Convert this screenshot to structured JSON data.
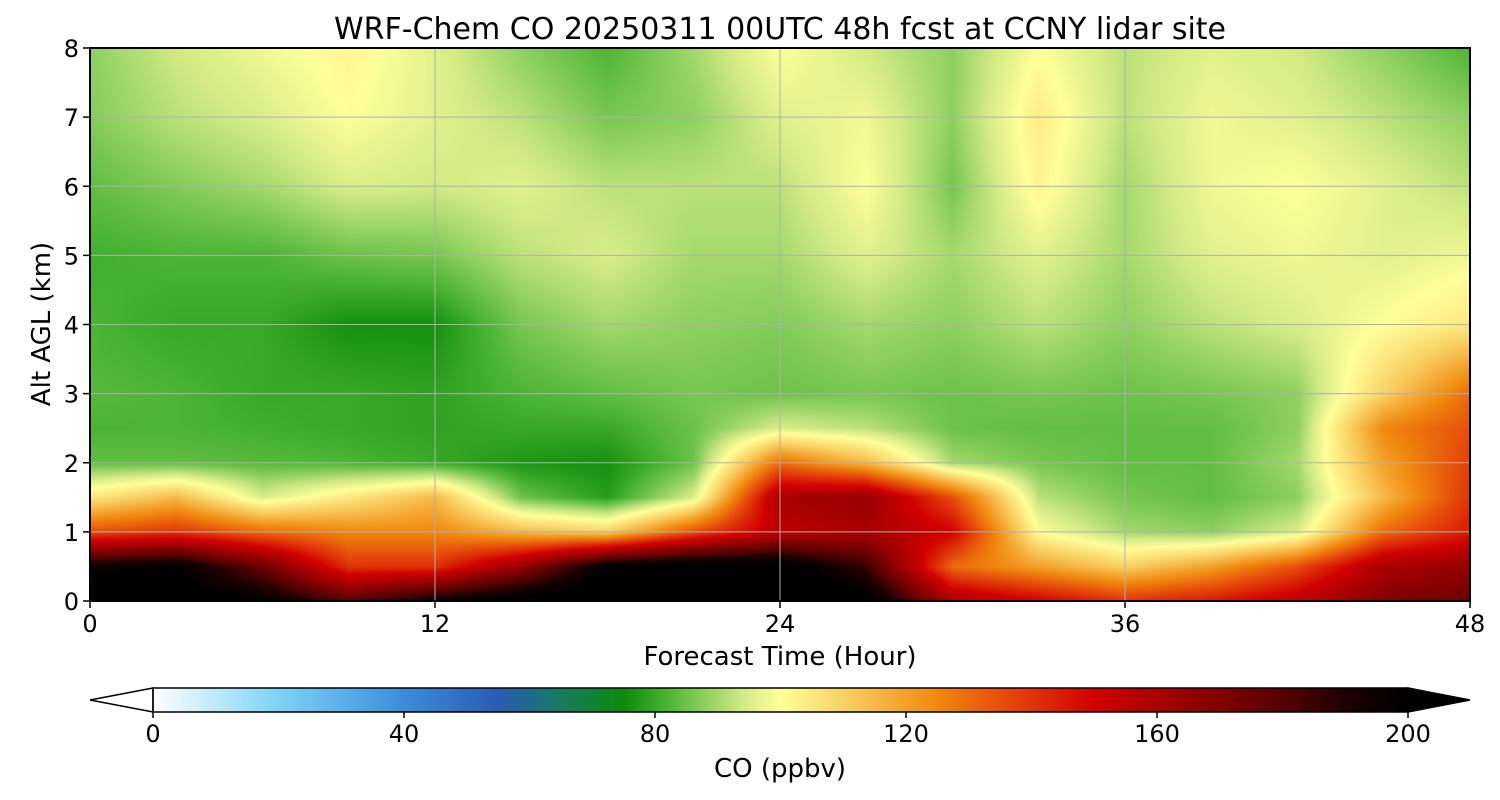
{
  "chart_data": {
    "type": "heatmap",
    "title": "WRF-Chem CO  20250311 00UTC 48h fcst at CCNY lidar site",
    "xlabel": "Forecast Time (Hour)",
    "ylabel": "Alt AGL (km)",
    "xlim": [
      0,
      48
    ],
    "ylim": [
      0,
      8
    ],
    "x_ticks": [
      "0",
      "12",
      "24",
      "36",
      "48"
    ],
    "y_ticks": [
      "0",
      "1",
      "2",
      "3",
      "4",
      "5",
      "6",
      "7",
      "8"
    ],
    "grid": true,
    "x_hours": [
      0,
      3,
      6,
      9,
      12,
      15,
      18,
      21,
      24,
      27,
      30,
      33,
      36,
      39,
      42,
      45,
      48
    ],
    "z_km": [
      0,
      0.5,
      1,
      1.5,
      2,
      2.5,
      3,
      4,
      5,
      6,
      7,
      8
    ],
    "co_ppbv": [
      [
        205,
        205,
        200,
        180,
        195,
        205,
        210,
        210,
        210,
        205,
        160,
        150,
        140,
        145,
        155,
        170,
        175
      ],
      [
        195,
        200,
        175,
        140,
        140,
        165,
        200,
        205,
        205,
        185,
        130,
        120,
        110,
        120,
        135,
        160,
        165
      ],
      [
        135,
        140,
        130,
        125,
        125,
        115,
        110,
        135,
        155,
        160,
        150,
        100,
        90,
        88,
        95,
        130,
        145
      ],
      [
        105,
        115,
        95,
        105,
        115,
        85,
        78,
        95,
        160,
        165,
        135,
        92,
        86,
        84,
        88,
        115,
        140
      ],
      [
        84,
        84,
        83,
        82,
        80,
        77,
        76,
        85,
        130,
        115,
        90,
        86,
        84,
        84,
        90,
        120,
        138
      ],
      [
        82,
        82,
        81,
        80,
        79,
        80,
        80,
        85,
        95,
        92,
        85,
        84,
        84,
        84,
        88,
        125,
        135
      ],
      [
        83,
        82,
        80,
        80,
        79,
        82,
        84,
        86,
        85,
        86,
        85,
        86,
        85,
        86,
        88,
        110,
        130
      ],
      [
        82,
        80,
        80,
        76,
        76,
        86,
        90,
        88,
        87,
        90,
        88,
        92,
        88,
        92,
        95,
        100,
        105
      ],
      [
        81,
        82,
        82,
        85,
        86,
        92,
        95,
        90,
        90,
        96,
        90,
        96,
        90,
        96,
        98,
        96,
        98
      ],
      [
        84,
        87,
        90,
        95,
        94,
        96,
        92,
        92,
        92,
        100,
        86,
        102,
        90,
        98,
        100,
        96,
        92
      ],
      [
        87,
        92,
        95,
        100,
        96,
        92,
        86,
        88,
        96,
        98,
        88,
        104,
        92,
        98,
        96,
        92,
        88
      ],
      [
        88,
        94,
        98,
        102,
        96,
        88,
        82,
        90,
        100,
        94,
        88,
        100,
        92,
        96,
        94,
        88,
        82
      ]
    ],
    "colorbar": {
      "label": "CO  (ppbv)",
      "min": 0,
      "max": 200,
      "ticks": [
        "0",
        "40",
        "80",
        "120",
        "160",
        "200"
      ],
      "extend": "both",
      "orientation": "horizontal",
      "colormap_stops": [
        {
          "value": 0,
          "color": "#ffffff"
        },
        {
          "value": 20,
          "color": "#7fd2f7"
        },
        {
          "value": 40,
          "color": "#3b8ddb"
        },
        {
          "value": 55,
          "color": "#2b5bb3"
        },
        {
          "value": 65,
          "color": "#167b60"
        },
        {
          "value": 75,
          "color": "#0c8a0c"
        },
        {
          "value": 82,
          "color": "#4cb434"
        },
        {
          "value": 88,
          "color": "#8ed061"
        },
        {
          "value": 94,
          "color": "#d2ea85"
        },
        {
          "value": 100,
          "color": "#ffff9a"
        },
        {
          "value": 112,
          "color": "#f8c85a"
        },
        {
          "value": 125,
          "color": "#f0880e"
        },
        {
          "value": 137,
          "color": "#e4440a"
        },
        {
          "value": 150,
          "color": "#d00000"
        },
        {
          "value": 165,
          "color": "#960000"
        },
        {
          "value": 180,
          "color": "#560000"
        },
        {
          "value": 190,
          "color": "#1e0000"
        },
        {
          "value": 200,
          "color": "#000000"
        }
      ]
    }
  }
}
